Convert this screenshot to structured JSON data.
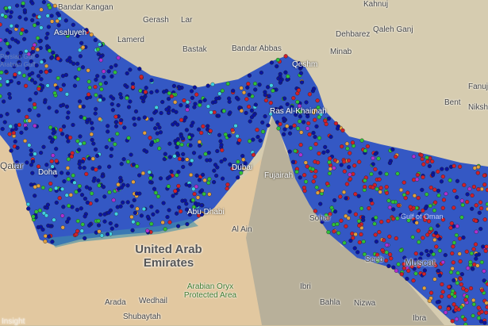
{
  "map": {
    "colors": {
      "sea": "#3458c4",
      "land_desert": "#e0c7a0",
      "land_mountain": "#b9b49e",
      "land_iran": "#d9d0b6"
    },
    "dot_colors": {
      "blue": "#0a14a0",
      "green": "#2fbf3a",
      "red": "#d0202a",
      "cyan": "#40d0e0",
      "orange": "#e0a040",
      "purple": "#b030d0"
    },
    "labels": {
      "bandar_kangan": "Bandar Kangan",
      "asaluyeh": "Asaluyeh",
      "gerash": "Gerash",
      "lar": "Lar",
      "lamerd": "Lamerd",
      "bastak": "Bastak",
      "persian_gulf": "Persian Gulf",
      "arabian_gulf": "Arabian Gulf",
      "bandar_abbas": "Bandar Abbas",
      "qeshm": "Qeshm",
      "kahnuj": "Kahnuj",
      "dehbarez": "Dehbarez",
      "qaleh_ganj": "Qaleh Ganj",
      "minab": "Minab",
      "fanuj": "Fanuj",
      "bent": "Bent",
      "nikshahr": "Nikshahr",
      "ras_al_khaimah": "Ras Al-Khaimah",
      "dubai": "Dubai",
      "fujairah": "Fujairah",
      "qatar": "Qatar",
      "doha": "Doha",
      "abu_dhabi": "Abu Dhabi",
      "sohar": "Sohar",
      "gulf_of_oman": "Gulf of Oman",
      "al_ain": "Al Ain",
      "uae": "United Arab Emirates",
      "seeb": "Seeb",
      "muscat": "Muscat",
      "ibri": "Ibri",
      "bahla": "Bahla",
      "nizwa": "Nizwa",
      "arabian_oryx": "Arabian Oryx Protected Area",
      "arada": "Arada",
      "wedhail": "Wedhail",
      "shubaytah": "Shubaytah",
      "ibra": "Ibra",
      "watermark": "Insight"
    }
  }
}
